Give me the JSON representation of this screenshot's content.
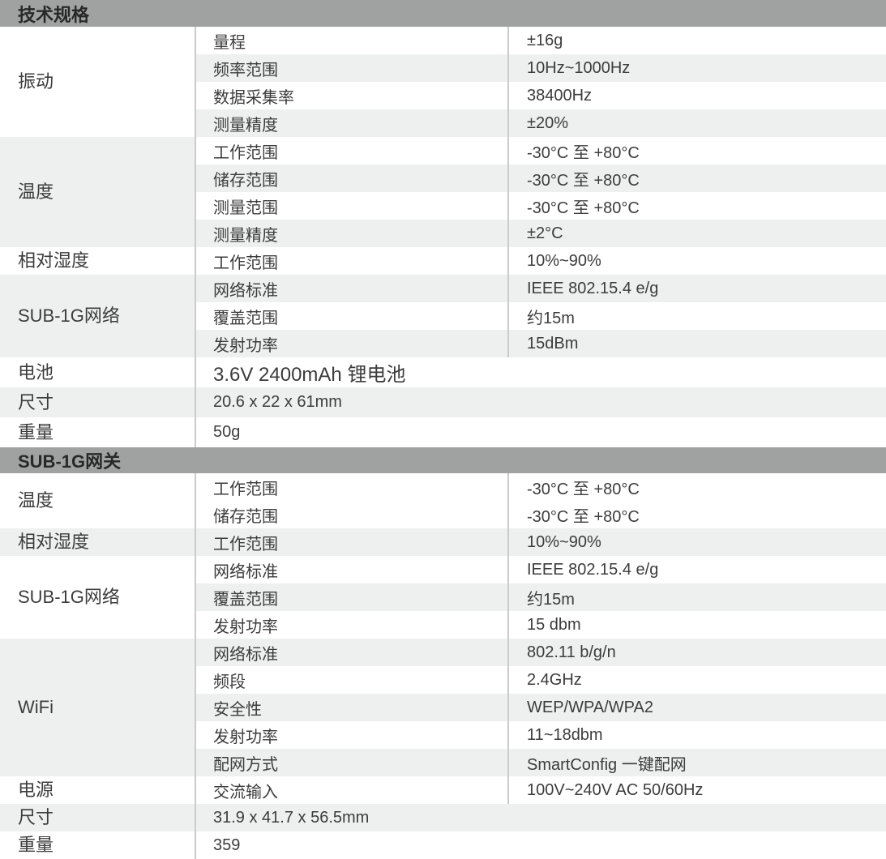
{
  "colors": {
    "header_bg": "#a0a1a1",
    "stripe": "#eeefef",
    "divider": "#cbcbcb",
    "text": "#3c3c3c",
    "header_text": "#282828"
  },
  "sections": [
    {
      "title": "技术规格",
      "groups": [
        {
          "label": "振动",
          "shaded": false,
          "rows": [
            {
              "sublabel": "量程",
              "value": "±16g",
              "shaded": false
            },
            {
              "sublabel": "频率范围",
              "value": "10Hz~1000Hz",
              "shaded": true
            },
            {
              "sublabel": "数据采集率",
              "value": "38400Hz",
              "shaded": false
            },
            {
              "sublabel": "测量精度",
              "value": "±20%",
              "shaded": true
            }
          ]
        },
        {
          "label": "温度",
          "shaded": true,
          "rows": [
            {
              "sublabel": "工作范围",
              "value": "-30°C 至 +80°C",
              "shaded": false
            },
            {
              "sublabel": "储存范围",
              "value": "-30°C 至 +80°C",
              "shaded": true
            },
            {
              "sublabel": "测量范围",
              "value": "-30°C 至 +80°C",
              "shaded": false
            },
            {
              "sublabel": "测量精度",
              "value": "±2°C",
              "shaded": true
            }
          ]
        },
        {
          "label": "相对湿度",
          "shaded": false,
          "rows": [
            {
              "sublabel": "工作范围",
              "value": "10%~90%",
              "shaded": false
            }
          ]
        },
        {
          "label": "SUB-1G网络",
          "shaded": true,
          "rows": [
            {
              "sublabel": "网络标准",
              "value": "IEEE 802.15.4 e/g",
              "shaded": true
            },
            {
              "sublabel": "覆盖范围",
              "value": "约15m",
              "shaded": false
            },
            {
              "sublabel": "发射功率",
              "value": "15dBm",
              "shaded": true
            }
          ]
        },
        {
          "label": "电池",
          "shaded": false,
          "rows": [
            {
              "value": "3.6V 2400mAh 锂电池",
              "merged": true,
              "large": true,
              "shaded": false
            }
          ]
        },
        {
          "label": "尺寸",
          "shaded": true,
          "rows": [
            {
              "value": "20.6 x 22 x 61mm",
              "merged": true,
              "shaded": true
            }
          ]
        },
        {
          "label": "重量",
          "shaded": false,
          "rows": [
            {
              "value": "50g",
              "merged": true,
              "shaded": false
            }
          ]
        }
      ]
    },
    {
      "title": "SUB-1G网关",
      "groups": [
        {
          "label": "温度",
          "shaded": false,
          "rows": [
            {
              "sublabel": "工作范围",
              "value": "-30°C 至 +80°C",
              "shaded": false
            },
            {
              "sublabel": "储存范围",
              "value": "-30°C 至 +80°C",
              "shaded": false
            }
          ]
        },
        {
          "label": "相对湿度",
          "shaded": true,
          "rows": [
            {
              "sublabel": "工作范围",
              "value": "10%~90%",
              "shaded": true
            }
          ]
        },
        {
          "label": "SUB-1G网络",
          "shaded": false,
          "rows": [
            {
              "sublabel": "网络标准",
              "value": "IEEE 802.15.4 e/g",
              "shaded": false
            },
            {
              "sublabel": "覆盖范围",
              "value": "约15m",
              "shaded": true
            },
            {
              "sublabel": "发射功率",
              "value": "15 dbm",
              "shaded": false
            }
          ]
        },
        {
          "label": "WiFi",
          "shaded": true,
          "rows": [
            {
              "sublabel": "网络标准",
              "value": "802.11 b/g/n",
              "shaded": true
            },
            {
              "sublabel": "频段",
              "value": "2.4GHz",
              "shaded": false
            },
            {
              "sublabel": "安全性",
              "value": "WEP/WPA/WPA2",
              "shaded": true
            },
            {
              "sublabel": "发射功率",
              "value": "11~18dbm",
              "shaded": false
            },
            {
              "sublabel": "配网方式",
              "value": "SmartConfig 一键配网",
              "shaded": true
            }
          ]
        },
        {
          "label": "电源",
          "shaded": false,
          "rows": [
            {
              "sublabel": "交流输入",
              "value": "100V~240V AC 50/60Hz",
              "shaded": false
            }
          ]
        },
        {
          "label": "尺寸",
          "shaded": true,
          "rows": [
            {
              "value": "31.9 x 41.7 x 56.5mm",
              "merged": true,
              "shaded": true
            }
          ]
        },
        {
          "label": "重量",
          "shaded": false,
          "rows": [
            {
              "value": "359",
              "merged": true,
              "shaded": false
            }
          ]
        }
      ]
    }
  ]
}
